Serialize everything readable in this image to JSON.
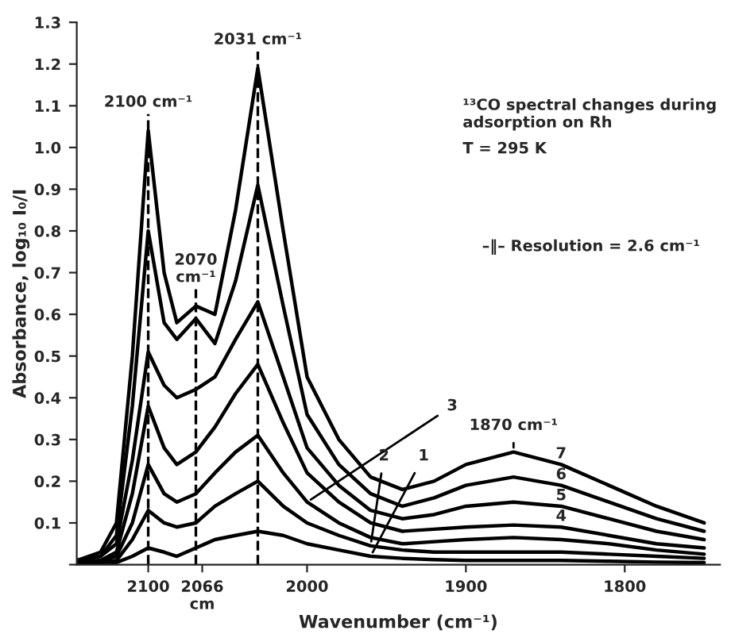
{
  "chart_data": {
    "type": "line",
    "xlabel": "Wavenumber (cm⁻¹)",
    "ylabel": "Absorbance, log₁₀ I₀/I",
    "x": [
      2145,
      2130,
      2120,
      2110,
      2100,
      2090,
      2082,
      2070,
      2058,
      2045,
      2031,
      2015,
      2000,
      1980,
      1960,
      1940,
      1920,
      1900,
      1870,
      1840,
      1810,
      1780,
      1750
    ],
    "series": [
      {
        "name": "7",
        "color": "#000000",
        "values": [
          0.01,
          0.03,
          0.1,
          0.5,
          1.04,
          0.7,
          0.58,
          0.62,
          0.6,
          0.85,
          1.19,
          0.8,
          0.45,
          0.3,
          0.21,
          0.18,
          0.2,
          0.24,
          0.27,
          0.24,
          0.19,
          0.14,
          0.1
        ]
      },
      {
        "name": "6",
        "color": "#000000",
        "values": [
          0.01,
          0.02,
          0.07,
          0.38,
          0.8,
          0.58,
          0.54,
          0.59,
          0.53,
          0.68,
          0.91,
          0.62,
          0.36,
          0.24,
          0.17,
          0.14,
          0.16,
          0.19,
          0.21,
          0.19,
          0.15,
          0.11,
          0.08
        ]
      },
      {
        "name": "5",
        "color": "#000000",
        "values": [
          0.01,
          0.02,
          0.05,
          0.25,
          0.51,
          0.43,
          0.4,
          0.42,
          0.45,
          0.54,
          0.63,
          0.45,
          0.28,
          0.19,
          0.13,
          0.11,
          0.12,
          0.14,
          0.15,
          0.14,
          0.11,
          0.08,
          0.06
        ]
      },
      {
        "name": "4",
        "color": "#000000",
        "values": [
          0.005,
          0.01,
          0.03,
          0.17,
          0.38,
          0.28,
          0.24,
          0.27,
          0.33,
          0.41,
          0.48,
          0.34,
          0.22,
          0.15,
          0.1,
          0.08,
          0.085,
          0.09,
          0.095,
          0.09,
          0.07,
          0.05,
          0.04
        ]
      },
      {
        "name": "3",
        "color": "#000000",
        "values": [
          0.005,
          0.01,
          0.02,
          0.1,
          0.24,
          0.17,
          0.15,
          0.17,
          0.22,
          0.27,
          0.31,
          0.22,
          0.15,
          0.1,
          0.065,
          0.05,
          0.055,
          0.06,
          0.065,
          0.06,
          0.05,
          0.035,
          0.025
        ]
      },
      {
        "name": "2",
        "color": "#000000",
        "values": [
          0,
          0.005,
          0.01,
          0.06,
          0.13,
          0.1,
          0.09,
          0.1,
          0.14,
          0.17,
          0.2,
          0.14,
          0.1,
          0.07,
          0.045,
          0.035,
          0.03,
          0.03,
          0.03,
          0.03,
          0.025,
          0.02,
          0.015
        ]
      },
      {
        "name": "1",
        "color": "#000000",
        "values": [
          0,
          0,
          0.005,
          0.02,
          0.04,
          0.03,
          0.02,
          0.04,
          0.06,
          0.07,
          0.08,
          0.07,
          0.05,
          0.035,
          0.02,
          0.015,
          0.012,
          0.01,
          0.01,
          0.01,
          0.008,
          0.006,
          0.005
        ]
      }
    ],
    "xlim": [
      2145,
      1740
    ],
    "xticks": [
      2100,
      {
        "value": 2066,
        "label": "2066\ncm"
      },
      2000,
      1900,
      1800
    ],
    "ylim": [
      0,
      1.3
    ],
    "yticks": [
      {
        "value": 0,
        "label": null
      },
      0.1,
      0.2,
      0.3,
      0.4,
      0.5,
      0.6,
      0.7,
      0.8,
      0.9,
      {
        "value": 1.0,
        "label": "1.0"
      },
      1.1,
      1.2,
      1.3
    ],
    "ref_lines": [
      {
        "axis": "x",
        "value": 2100,
        "label": "2100 cm⁻¹",
        "line_style": "dashed"
      },
      {
        "axis": "x",
        "value": 2070,
        "label": "2070\ncm⁻¹",
        "line_style": "dashed"
      },
      {
        "axis": "x",
        "value": 2031,
        "label": "2031 cm⁻¹",
        "line_style": "dashed"
      }
    ],
    "annotations": [
      "¹³CO spectral changes during\nadsorption on Rh",
      "T = 295 K",
      "–‖– Resolution = 2.6 cm⁻¹",
      {
        "text": "1870 cm⁻¹",
        "x": 1870,
        "y": 0.27
      }
    ],
    "grid": false,
    "legend": false,
    "marker": "none",
    "line_style": "solid"
  }
}
